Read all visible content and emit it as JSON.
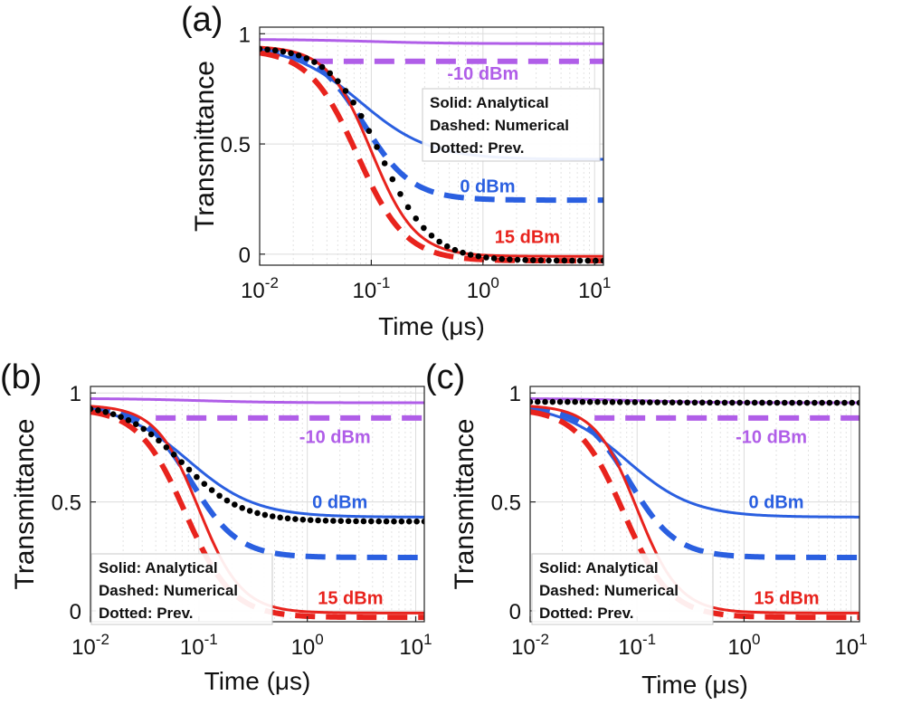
{
  "colors": {
    "purple": "#b05ee8",
    "blue": "#2a5fe0",
    "red": "#e8231d",
    "black": "#000000",
    "grid": "#dcdcdc"
  },
  "chart_data": [
    {
      "type": "line",
      "panel_label": "(a)",
      "xlabel": "Time  (μs)",
      "ylabel": "Transmittance",
      "x_scale": "log",
      "xlim": [
        0.01,
        12
      ],
      "ylim": [
        -0.05,
        1.03
      ],
      "x_ticks": [
        {
          "value": 0.01,
          "base": "10",
          "exp": "-2"
        },
        {
          "value": 0.1,
          "base": "10",
          "exp": "-1"
        },
        {
          "value": 1,
          "base": "10",
          "exp": "0"
        },
        {
          "value": 10,
          "base": "10",
          "exp": "1"
        }
      ],
      "y_ticks": [
        {
          "value": 1,
          "label": "1"
        },
        {
          "value": 0.5,
          "label": "0.5"
        },
        {
          "value": 0,
          "label": "0"
        }
      ],
      "grid": true,
      "legend": {
        "position": "upper-right",
        "lines": [
          "Solid: Analytical",
          "Dashed: Numerical",
          "Dotted: Prev."
        ]
      },
      "series_labels": [
        {
          "text": "-10 dBm",
          "color": "#b05ee8",
          "x": 1.0,
          "y": 0.82
        },
        {
          "text": "0 dBm",
          "color": "#2a5fe0",
          "x": 1.1,
          "y": 0.31
        },
        {
          "text": "15 dBm",
          "color": "#e8231d",
          "x": 2.5,
          "y": 0.08
        }
      ],
      "series": [
        {
          "name": "-10 dBm analytical",
          "style": "solid",
          "color": "#b05ee8",
          "y0": 0.975,
          "yinf": 0.955,
          "tau": 0.1,
          "n": 1.2
        },
        {
          "name": "-10 dBm numerical",
          "style": "dashed",
          "color": "#b05ee8",
          "y0": 0.875,
          "yinf": 0.875,
          "tau": 0.1,
          "n": 1.2,
          "x_start": 0.03
        },
        {
          "name": "0 dBm analytical",
          "style": "solid",
          "color": "#2a5fe0",
          "y0": 0.95,
          "yinf": 0.43,
          "tau": 0.08,
          "n": 1.4
        },
        {
          "name": "0 dBm numerical",
          "style": "dashed",
          "color": "#2a5fe0",
          "y0": 0.94,
          "yinf": 0.245,
          "tau": 0.085,
          "n": 2.0
        },
        {
          "name": "15 dBm analytical",
          "style": "solid",
          "color": "#e8231d",
          "y0": 0.945,
          "yinf": -0.01,
          "tau": 0.1,
          "n": 2.2
        },
        {
          "name": "15 dBm numerical",
          "style": "dashed",
          "color": "#e8231d",
          "y0": 0.93,
          "yinf": -0.03,
          "tau": 0.075,
          "n": 2.0
        },
        {
          "name": "Previous work",
          "style": "dotted",
          "color": "#000000",
          "y0": 0.94,
          "yinf": -0.03,
          "tau": 0.12,
          "n": 1.9
        }
      ]
    },
    {
      "type": "line",
      "panel_label": "(b)",
      "xlabel": "Time  (μs)",
      "ylabel": "Transmittance",
      "x_scale": "log",
      "xlim": [
        0.01,
        12
      ],
      "ylim": [
        -0.05,
        1.03
      ],
      "x_ticks": [
        {
          "value": 0.01,
          "base": "10",
          "exp": "-2"
        },
        {
          "value": 0.1,
          "base": "10",
          "exp": "-1"
        },
        {
          "value": 1,
          "base": "10",
          "exp": "0"
        },
        {
          "value": 10,
          "base": "10",
          "exp": "1"
        }
      ],
      "y_ticks": [
        {
          "value": 1,
          "label": "1"
        },
        {
          "value": 0.5,
          "label": "0.5"
        },
        {
          "value": 0,
          "label": "0"
        }
      ],
      "grid": true,
      "legend": {
        "position": "lower-left",
        "lines": [
          "Solid: Analytical",
          "Dashed: Numerical",
          "Dotted: Prev."
        ]
      },
      "series_labels": [
        {
          "text": "-10 dBm",
          "color": "#b05ee8",
          "x": 1.8,
          "y": 0.8
        },
        {
          "text": "0 dBm",
          "color": "#2a5fe0",
          "x": 2.0,
          "y": 0.5
        },
        {
          "text": "15 dBm",
          "color": "#e8231d",
          "x": 2.5,
          "y": 0.06
        }
      ],
      "series": [
        {
          "name": "-10 dBm analytical",
          "style": "solid",
          "color": "#b05ee8",
          "y0": 0.975,
          "yinf": 0.955,
          "tau": 0.1,
          "n": 1.2
        },
        {
          "name": "-10 dBm numerical",
          "style": "dashed",
          "color": "#b05ee8",
          "y0": 0.885,
          "yinf": 0.885,
          "tau": 0.1,
          "n": 1.2,
          "x_start": 0.04
        },
        {
          "name": "0 dBm analytical",
          "style": "solid",
          "color": "#2a5fe0",
          "y0": 0.95,
          "yinf": 0.43,
          "tau": 0.08,
          "n": 1.4
        },
        {
          "name": "0 dBm numerical",
          "style": "dashed",
          "color": "#2a5fe0",
          "y0": 0.94,
          "yinf": 0.245,
          "tau": 0.085,
          "n": 2.0
        },
        {
          "name": "15 dBm analytical",
          "style": "solid",
          "color": "#e8231d",
          "y0": 0.945,
          "yinf": -0.01,
          "tau": 0.1,
          "n": 2.2
        },
        {
          "name": "15 dBm numerical",
          "style": "dashed",
          "color": "#e8231d",
          "y0": 0.93,
          "yinf": -0.03,
          "tau": 0.075,
          "n": 2.0
        },
        {
          "name": "Previous work",
          "style": "dotted",
          "color": "#000000",
          "y0": 0.95,
          "yinf": 0.41,
          "tau": 0.07,
          "n": 1.6
        }
      ]
    },
    {
      "type": "line",
      "panel_label": "(c)",
      "xlabel": "Time  (μs)",
      "ylabel": "Transmittance",
      "x_scale": "log",
      "xlim": [
        0.01,
        12
      ],
      "ylim": [
        -0.05,
        1.03
      ],
      "x_ticks": [
        {
          "value": 0.01,
          "base": "10",
          "exp": "-2"
        },
        {
          "value": 0.1,
          "base": "10",
          "exp": "-1"
        },
        {
          "value": 1,
          "base": "10",
          "exp": "0"
        },
        {
          "value": 10,
          "base": "10",
          "exp": "1"
        }
      ],
      "y_ticks": [
        {
          "value": 1,
          "label": "1"
        },
        {
          "value": 0.5,
          "label": "0.5"
        },
        {
          "value": 0,
          "label": "0"
        }
      ],
      "grid": true,
      "legend": {
        "position": "lower-left",
        "lines": [
          "Solid: Analytical",
          "Dashed: Numerical",
          "Dotted: Prev."
        ]
      },
      "series_labels": [
        {
          "text": "-10 dBm",
          "color": "#b05ee8",
          "x": 1.8,
          "y": 0.8
        },
        {
          "text": "0 dBm",
          "color": "#2a5fe0",
          "x": 2.0,
          "y": 0.5
        },
        {
          "text": "15 dBm",
          "color": "#e8231d",
          "x": 2.5,
          "y": 0.06
        }
      ],
      "series": [
        {
          "name": "-10 dBm analytical",
          "style": "solid",
          "color": "#b05ee8",
          "y0": 0.975,
          "yinf": 0.955,
          "tau": 0.1,
          "n": 1.2
        },
        {
          "name": "-10 dBm numerical",
          "style": "dashed",
          "color": "#b05ee8",
          "y0": 0.885,
          "yinf": 0.885,
          "tau": 0.1,
          "n": 1.2,
          "x_start": 0.04
        },
        {
          "name": "0 dBm analytical",
          "style": "solid",
          "color": "#2a5fe0",
          "y0": 0.95,
          "yinf": 0.43,
          "tau": 0.08,
          "n": 1.4
        },
        {
          "name": "0 dBm numerical",
          "style": "dashed",
          "color": "#2a5fe0",
          "y0": 0.94,
          "yinf": 0.245,
          "tau": 0.085,
          "n": 2.0
        },
        {
          "name": "15 dBm analytical",
          "style": "solid",
          "color": "#e8231d",
          "y0": 0.945,
          "yinf": -0.01,
          "tau": 0.1,
          "n": 2.2
        },
        {
          "name": "15 dBm numerical",
          "style": "dashed",
          "color": "#e8231d",
          "y0": 0.93,
          "yinf": -0.03,
          "tau": 0.075,
          "n": 2.0
        },
        {
          "name": "Previous work",
          "style": "dotted",
          "color": "#000000",
          "y0": 0.96,
          "yinf": 0.955,
          "tau": 0.1,
          "n": 1.0
        }
      ]
    }
  ]
}
